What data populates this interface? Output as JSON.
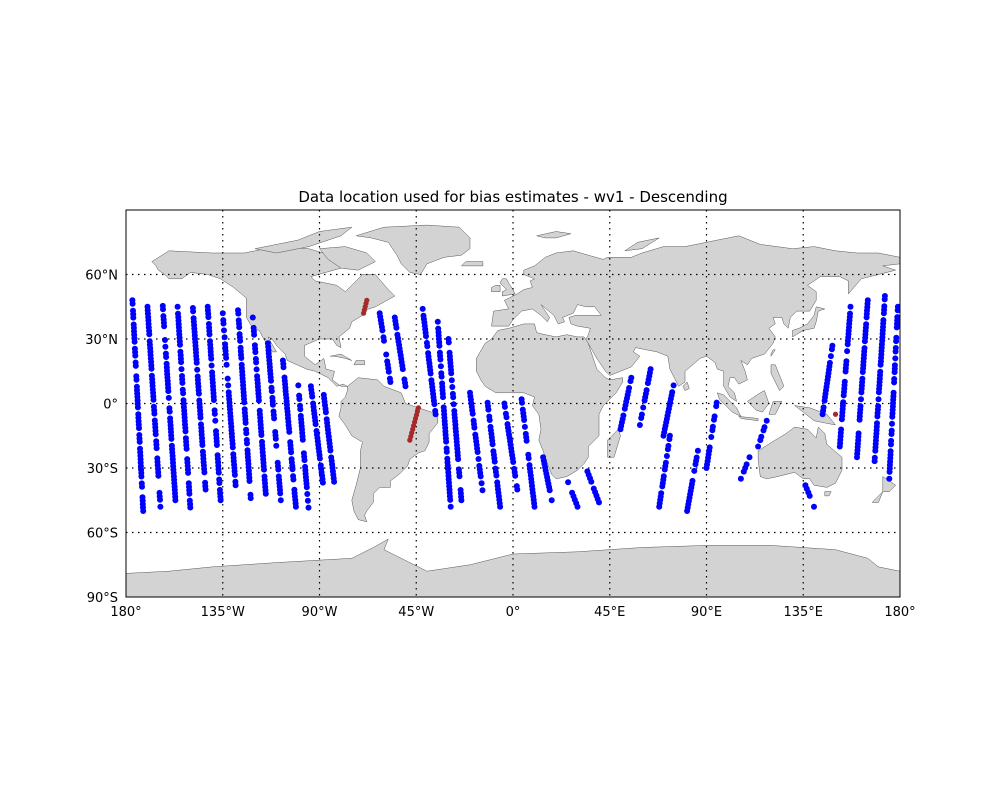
{
  "title": "Data location used for bias estimates - wv1 - Descending",
  "lat_ticks": [
    "60°N",
    "30°N",
    "0°",
    "30°S",
    "60°S",
    "90°S"
  ],
  "lon_ticks": [
    "180°",
    "135°W",
    "90°W",
    "45°W",
    "0°",
    "45°E",
    "90°E",
    "135°E",
    "180°"
  ],
  "colors": {
    "land": "#d3d3d3",
    "coast": "#555555",
    "ocean": "#ffffff",
    "used": "#0000ff",
    "rejected": "#a52a2a",
    "grid": "#000000"
  },
  "chart_data": {
    "type": "scatter",
    "projection": "equirectangular",
    "xlim": [
      -180,
      180
    ],
    "ylim": [
      -90,
      90
    ],
    "grid": true,
    "grid_style": "dotted",
    "series": [
      {
        "color": "blue",
        "tracks": [
          {
            "lat": [
              48,
              -50
            ],
            "lon_start": -177,
            "lon_end": -172
          },
          {
            "lat": [
              45,
              -48
            ],
            "lon_start": -170,
            "lon_end": -164
          },
          {
            "lat": [
              47,
              -45
            ],
            "lon_start": -163,
            "lon_end": -157
          },
          {
            "lat": [
              45,
              -50
            ],
            "lon_start": -156,
            "lon_end": -150
          },
          {
            "lat": [
              46,
              -40
            ],
            "lon_start": -149,
            "lon_end": -143
          },
          {
            "lat": [
              45,
              -45
            ],
            "lon_start": -142,
            "lon_end": -136
          },
          {
            "lat": [
              42,
              -38
            ],
            "lon_start": -135,
            "lon_end": -129
          },
          {
            "lat": [
              45,
              -44
            ],
            "lon_start": -128,
            "lon_end": -122
          },
          {
            "lat": [
              40,
              -42
            ],
            "lon_start": -121,
            "lon_end": -115
          },
          {
            "lat": [
              28,
              -45
            ],
            "lon_start": -114,
            "lon_end": -108
          },
          {
            "lat": [
              20,
              -48
            ],
            "lon_start": -107,
            "lon_end": -101
          },
          {
            "lat": [
              10,
              -50
            ],
            "lon_start": -100,
            "lon_end": -95
          },
          {
            "lat": [
              8,
              -40
            ],
            "lon_start": -94,
            "lon_end": -88
          },
          {
            "lat": [
              4,
              -38
            ],
            "lon_start": -88,
            "lon_end": -83
          },
          {
            "lat": [
              42,
              10
            ],
            "lon_start": -62,
            "lon_end": -57
          },
          {
            "lat": [
              40,
              8
            ],
            "lon_start": -55,
            "lon_end": -50
          },
          {
            "lat": [
              44,
              -5
            ],
            "lon_start": -42,
            "lon_end": -36
          },
          {
            "lat": [
              38,
              -48
            ],
            "lon_start": -35,
            "lon_end": -29
          },
          {
            "lat": [
              30,
              -45
            ],
            "lon_start": -30,
            "lon_end": -24
          },
          {
            "lat": [
              5,
              -42
            ],
            "lon_start": -20,
            "lon_end": -14
          },
          {
            "lat": [
              2,
              -48
            ],
            "lon_start": -12,
            "lon_end": -6
          },
          {
            "lat": [
              0,
              -40
            ],
            "lon_start": -4,
            "lon_end": 2
          },
          {
            "lat": [
              2,
              -48
            ],
            "lon_start": 4,
            "lon_end": 10
          },
          {
            "lat": [
              -25,
              -45
            ],
            "lon_start": 14,
            "lon_end": 18
          },
          {
            "lat": [
              -35,
              -48
            ],
            "lon_start": 25,
            "lon_end": 30
          },
          {
            "lat": [
              -30,
              -46
            ],
            "lon_start": 34,
            "lon_end": 40
          },
          {
            "lat": [
              12,
              -12
            ],
            "lon_start": 55,
            "lon_end": 50
          },
          {
            "lat": [
              16,
              -10
            ],
            "lon_start": 64,
            "lon_end": 59
          },
          {
            "lat": [
              10,
              -15
            ],
            "lon_start": 75,
            "lon_end": 70
          },
          {
            "lat": [
              -15,
              -48
            ],
            "lon_start": 73,
            "lon_end": 68
          },
          {
            "lat": [
              -22,
              -50
            ],
            "lon_start": 86,
            "lon_end": 81
          },
          {
            "lat": [
              2,
              -30
            ],
            "lon_start": 95,
            "lon_end": 90
          },
          {
            "lat": [
              -25,
              -35
            ],
            "lon_start": 110,
            "lon_end": 106
          },
          {
            "lat": [
              -8,
              -20
            ],
            "lon_start": 118,
            "lon_end": 114
          },
          {
            "lat": [
              30,
              -5
            ],
            "lon_start": 149,
            "lon_end": 144
          },
          {
            "lat": [
              45,
              -20
            ],
            "lon_start": 157,
            "lon_end": 152
          },
          {
            "lat": [
              48,
              -25
            ],
            "lon_start": 165,
            "lon_end": 160
          },
          {
            "lat": [
              50,
              -30
            ],
            "lon_start": 173,
            "lon_end": 168
          },
          {
            "lat": [
              45,
              -35
            ],
            "lon_start": 179,
            "lon_end": 175
          },
          {
            "lat": [
              -38,
              -48
            ],
            "lon_start": 136,
            "lon_end": 140
          }
        ]
      },
      {
        "color": "brown",
        "tracks": [
          {
            "lat": [
              48,
              42
            ],
            "lon_start": -68,
            "lon_end": -69.5
          },
          {
            "lat": [
              -2,
              -17
            ],
            "lon_start": -44,
            "lon_end": -48
          }
        ],
        "points": [
          {
            "lon": 150,
            "lat": -5
          }
        ]
      }
    ]
  }
}
